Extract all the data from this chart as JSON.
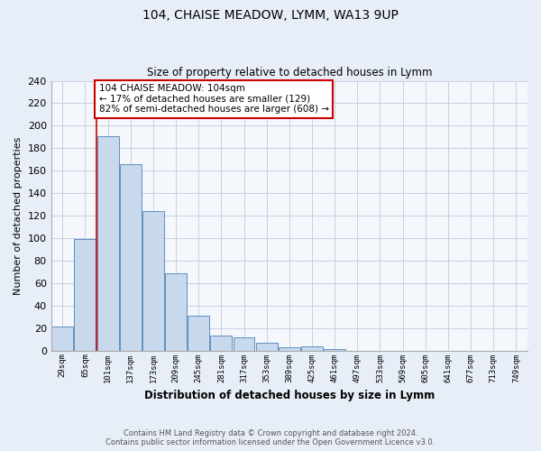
{
  "title": "104, CHAISE MEADOW, LYMM, WA13 9UP",
  "subtitle": "Size of property relative to detached houses in Lymm",
  "xlabel": "Distribution of detached houses by size in Lymm",
  "ylabel": "Number of detached properties",
  "bar_labels": [
    "29sqm",
    "65sqm",
    "101sqm",
    "137sqm",
    "173sqm",
    "209sqm",
    "245sqm",
    "281sqm",
    "317sqm",
    "353sqm",
    "389sqm",
    "425sqm",
    "461sqm",
    "497sqm",
    "533sqm",
    "569sqm",
    "605sqm",
    "641sqm",
    "677sqm",
    "713sqm",
    "749sqm"
  ],
  "bar_values": [
    21,
    99,
    191,
    166,
    124,
    69,
    31,
    13,
    12,
    7,
    3,
    4,
    1,
    0,
    0,
    0,
    0,
    0,
    0,
    0,
    0
  ],
  "bar_color": "#c8d8ed",
  "bar_edge_color": "#6090c0",
  "highlight_line_color": "#cc0000",
  "annotation_text": "104 CHAISE MEADOW: 104sqm\n← 17% of detached houses are smaller (129)\n82% of semi-detached houses are larger (608) →",
  "annotation_box_color": "#ffffff",
  "annotation_box_edge": "#cc0000",
  "ylim": [
    0,
    240
  ],
  "yticks": [
    0,
    20,
    40,
    60,
    80,
    100,
    120,
    140,
    160,
    180,
    200,
    220,
    240
  ],
  "footer_line1": "Contains HM Land Registry data © Crown copyright and database right 2024.",
  "footer_line2": "Contains public sector information licensed under the Open Government Licence v3.0.",
  "bg_color": "#e8eef8",
  "plot_bg_color": "#f4f7fc",
  "grid_color": "#c8d0e0"
}
